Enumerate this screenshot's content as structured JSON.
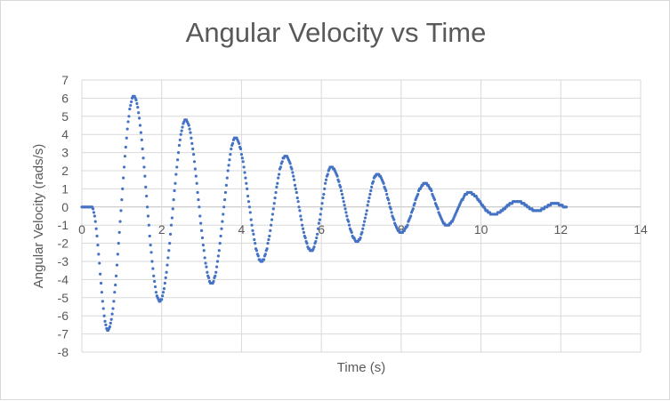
{
  "chart_data": {
    "type": "scatter",
    "title": "Angular Velocity vs Time",
    "xlabel": "Time (s)",
    "ylabel": "Angular Velocity (rads/s)",
    "xlim": [
      0,
      14
    ],
    "ylim": [
      -8,
      7
    ],
    "x_ticks": [
      0,
      2,
      4,
      6,
      8,
      10,
      12,
      14
    ],
    "y_ticks": [
      7,
      6,
      5,
      4,
      3,
      2,
      1,
      0,
      -1,
      -2,
      -3,
      -4,
      -5,
      -6,
      -7,
      -8
    ],
    "grid": true,
    "legend": "none",
    "marker_color": "#4472c4",
    "signal": {
      "initial_flat_until": 0.25,
      "peaks": [
        {
          "t": 0.25,
          "v": 0
        },
        {
          "t": 0.65,
          "v": -6.8
        },
        {
          "t": 1.3,
          "v": 6.1
        },
        {
          "t": 1.95,
          "v": -5.2
        },
        {
          "t": 2.6,
          "v": 4.8
        },
        {
          "t": 3.25,
          "v": -4.2
        },
        {
          "t": 3.85,
          "v": 3.8
        },
        {
          "t": 4.5,
          "v": -3.0
        },
        {
          "t": 5.1,
          "v": 2.8
        },
        {
          "t": 5.75,
          "v": -2.4
        },
        {
          "t": 6.25,
          "v": 2.2
        },
        {
          "t": 6.9,
          "v": -1.9
        },
        {
          "t": 7.4,
          "v": 1.8
        },
        {
          "t": 8.0,
          "v": -1.4
        },
        {
          "t": 8.6,
          "v": 1.3
        },
        {
          "t": 9.15,
          "v": -1.0
        },
        {
          "t": 9.7,
          "v": 0.8
        },
        {
          "t": 10.3,
          "v": -0.4
        },
        {
          "t": 10.9,
          "v": 0.3
        },
        {
          "t": 11.4,
          "v": -0.2
        },
        {
          "t": 11.85,
          "v": 0.2
        },
        {
          "t": 12.15,
          "v": 0
        }
      ]
    }
  }
}
